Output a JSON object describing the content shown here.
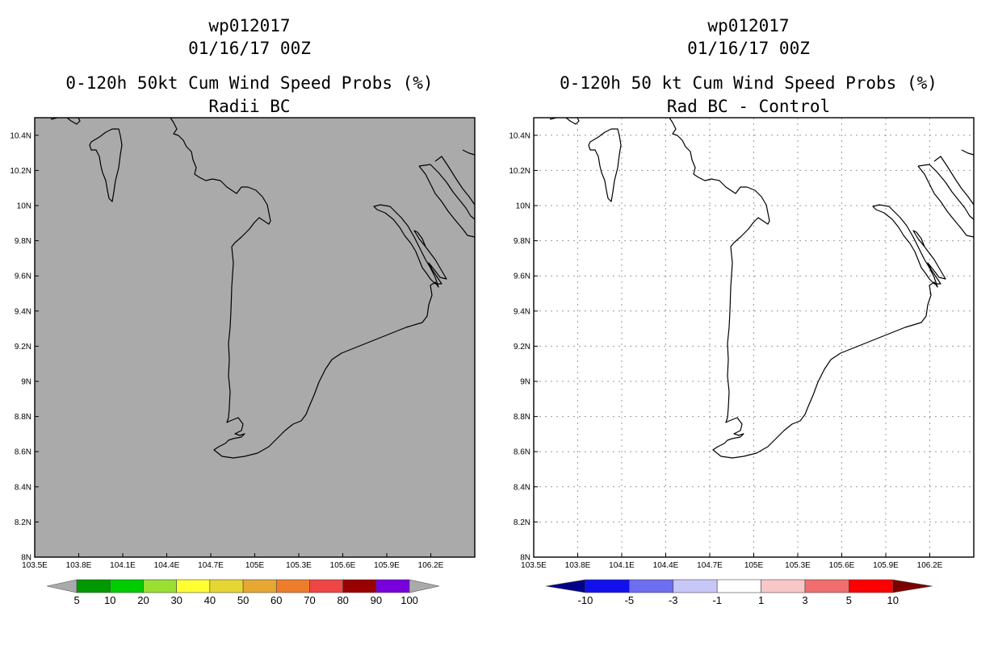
{
  "panels": [
    {
      "id": "left",
      "storm_id": "wp012017",
      "datetime": "01/16/17 00Z",
      "title": "0-120h 50kt Cum Wind Speed Probs (%)",
      "subtitle": "Radii BC",
      "background_color": "#aaaaaa",
      "grid": false,
      "colorbar": {
        "labels": [
          "5",
          "10",
          "20",
          "30",
          "40",
          "50",
          "60",
          "70",
          "80",
          "90",
          "100"
        ],
        "colors": [
          "#009900",
          "#00cc00",
          "#99e033",
          "#ffff33",
          "#e6d633",
          "#e6a833",
          "#ee7d2b",
          "#f04545",
          "#990000",
          "#7700dd"
        ],
        "end_colors": [
          "#aaaaaa",
          "#aaaaaa"
        ]
      }
    },
    {
      "id": "right",
      "storm_id": "wp012017",
      "datetime": "01/16/17 00Z",
      "title": "0-120h 50 kt Cum Wind Speed Probs (%)",
      "subtitle": "Rad BC - Control",
      "background_color": "#ffffff",
      "grid": true,
      "colorbar": {
        "labels": [
          "-10",
          "-5",
          "-3",
          "-1",
          "1",
          "3",
          "5",
          "10"
        ],
        "colors": [
          "#1111ee",
          "#6e6ef2",
          "#c8c8f8",
          "#ffffff",
          "#f8c8c8",
          "#f06e6e",
          "#ff0000"
        ],
        "end_colors": [
          "#000088",
          "#7a0000"
        ]
      }
    }
  ],
  "axes": {
    "lat_labels": [
      "10.4N",
      "10.2N",
      "10N",
      "9.8N",
      "9.6N",
      "9.4N",
      "9.2N",
      "9N",
      "8.8N",
      "8.6N",
      "8.4N",
      "8.2N",
      "8N"
    ],
    "lon_labels": [
      "103.5E",
      "103.8E",
      "104.1E",
      "104.4E",
      "104.7E",
      "105E",
      "105.3E",
      "105.6E",
      "105.9E",
      "106.2E"
    ],
    "lat_values": [
      10.4,
      10.2,
      10.0,
      9.8,
      9.6,
      9.4,
      9.2,
      9.0,
      8.8,
      8.6,
      8.4,
      8.2,
      8.0
    ],
    "lon_values": [
      103.5,
      103.8,
      104.1,
      104.4,
      104.7,
      105.0,
      105.3,
      105.6,
      105.9,
      106.2
    ],
    "lat_range": [
      8.0,
      10.5
    ],
    "lon_range": [
      103.5,
      106.5
    ]
  }
}
